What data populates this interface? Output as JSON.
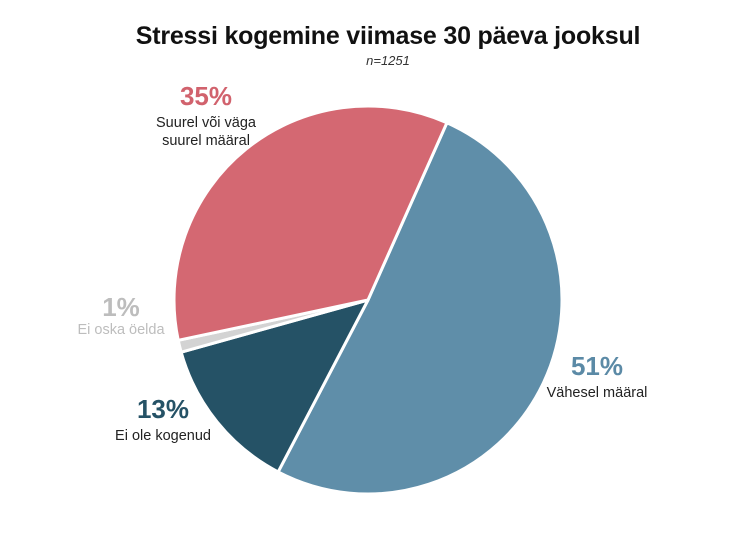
{
  "chart_data": {
    "type": "pie",
    "title": "Stressi kogemine viimase 30 päeva jooksul",
    "subtitle": "n=1251",
    "slices": [
      {
        "label": "Vähesel määral",
        "value": 51,
        "value_label": "51%",
        "color": "#5f8ea9",
        "label_color": "#5b8aa6",
        "text_color": "#222222"
      },
      {
        "label": "Ei ole kogenud",
        "value": 13,
        "value_label": "13%",
        "color": "#255266",
        "label_color": "#255266",
        "text_color": "#222222"
      },
      {
        "label": "Ei oska öelda",
        "value": 1,
        "value_label": "1%",
        "color": "#d3d3d3",
        "label_color": "#bdbdbd",
        "text_color": "#bdbdbd"
      },
      {
        "label": "Suurel või väga suurel määral",
        "value": 35,
        "value_label": "35%",
        "color": "#d46872",
        "label_color": "#d1626d",
        "text_color": "#222222"
      }
    ]
  }
}
